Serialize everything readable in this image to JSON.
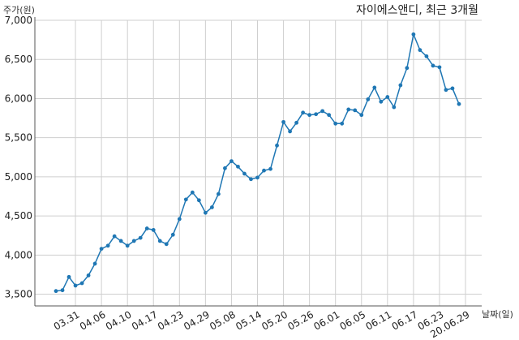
{
  "chart_data": {
    "type": "line",
    "title": "자이에스앤디, 최근 3개월",
    "xlabel": "날짜(일)",
    "ylabel": "주가(원)",
    "ylim": [
      3350,
      7000
    ],
    "yticks": [
      3500,
      4000,
      4500,
      5000,
      5500,
      6000,
      6500,
      7000
    ],
    "ytick_labels": [
      "3,500",
      "4,000",
      "4,500",
      "5,000",
      "5,500",
      "6,000",
      "6,500",
      "7,000"
    ],
    "grid": true,
    "color": "#1f77b4",
    "x_ticks": [
      {
        "index": 3,
        "label": "03.31"
      },
      {
        "index": 7,
        "label": "04.06"
      },
      {
        "index": 11,
        "label": "04.10"
      },
      {
        "index": 15,
        "label": "04.17"
      },
      {
        "index": 19,
        "label": "04.23"
      },
      {
        "index": 23,
        "label": "04.29"
      },
      {
        "index": 27,
        "label": "05.08"
      },
      {
        "index": 31,
        "label": "05.14"
      },
      {
        "index": 35,
        "label": "05.20"
      },
      {
        "index": 39,
        "label": "05.26"
      },
      {
        "index": 43,
        "label": "06.01"
      },
      {
        "index": 47,
        "label": "06.05"
      },
      {
        "index": 51,
        "label": "06.11"
      },
      {
        "index": 55,
        "label": "06.17"
      },
      {
        "index": 59,
        "label": "06.23"
      },
      {
        "index": 63,
        "label": "20.06.29"
      }
    ],
    "series": [
      {
        "values": [
          3540,
          3550,
          3720,
          3610,
          3640,
          3740,
          3890,
          4080,
          4120,
          4240,
          4180,
          4120,
          4180,
          4220,
          4340,
          4320,
          4180,
          4140,
          4260,
          4460,
          4710,
          4800,
          4700,
          4540,
          4610,
          4780,
          5110,
          5200,
          5130,
          5040,
          4970,
          4990,
          5080,
          5100,
          5400,
          5700,
          5580,
          5690,
          5820,
          5790,
          5800,
          5840,
          5790,
          5680,
          5680,
          5860,
          5850,
          5790,
          5990,
          6140,
          5960,
          6020,
          5890,
          6170,
          6390,
          6820,
          6620,
          6540,
          6420,
          6400,
          6110,
          6130,
          5930
        ]
      }
    ]
  }
}
